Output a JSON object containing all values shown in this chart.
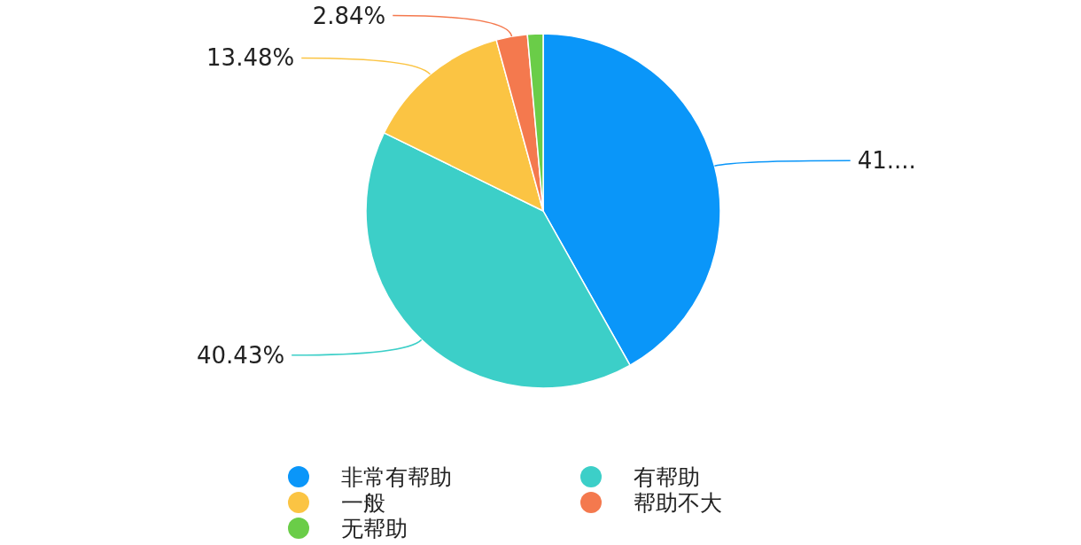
{
  "chart_data": {
    "type": "pie",
    "categories": [
      "非常有帮助",
      "有帮助",
      "一般",
      "帮助不大",
      "无帮助"
    ],
    "values": [
      41.84,
      40.43,
      13.48,
      2.84,
      1.42
    ],
    "colors": [
      "#0a96f9",
      "#3ccfc8",
      "#fbc443",
      "#f4794e",
      "#6acd48"
    ],
    "value_labels": [
      "41....",
      "40.43%",
      "13.48%",
      "2.84%",
      null
    ],
    "legend": "bottom"
  }
}
